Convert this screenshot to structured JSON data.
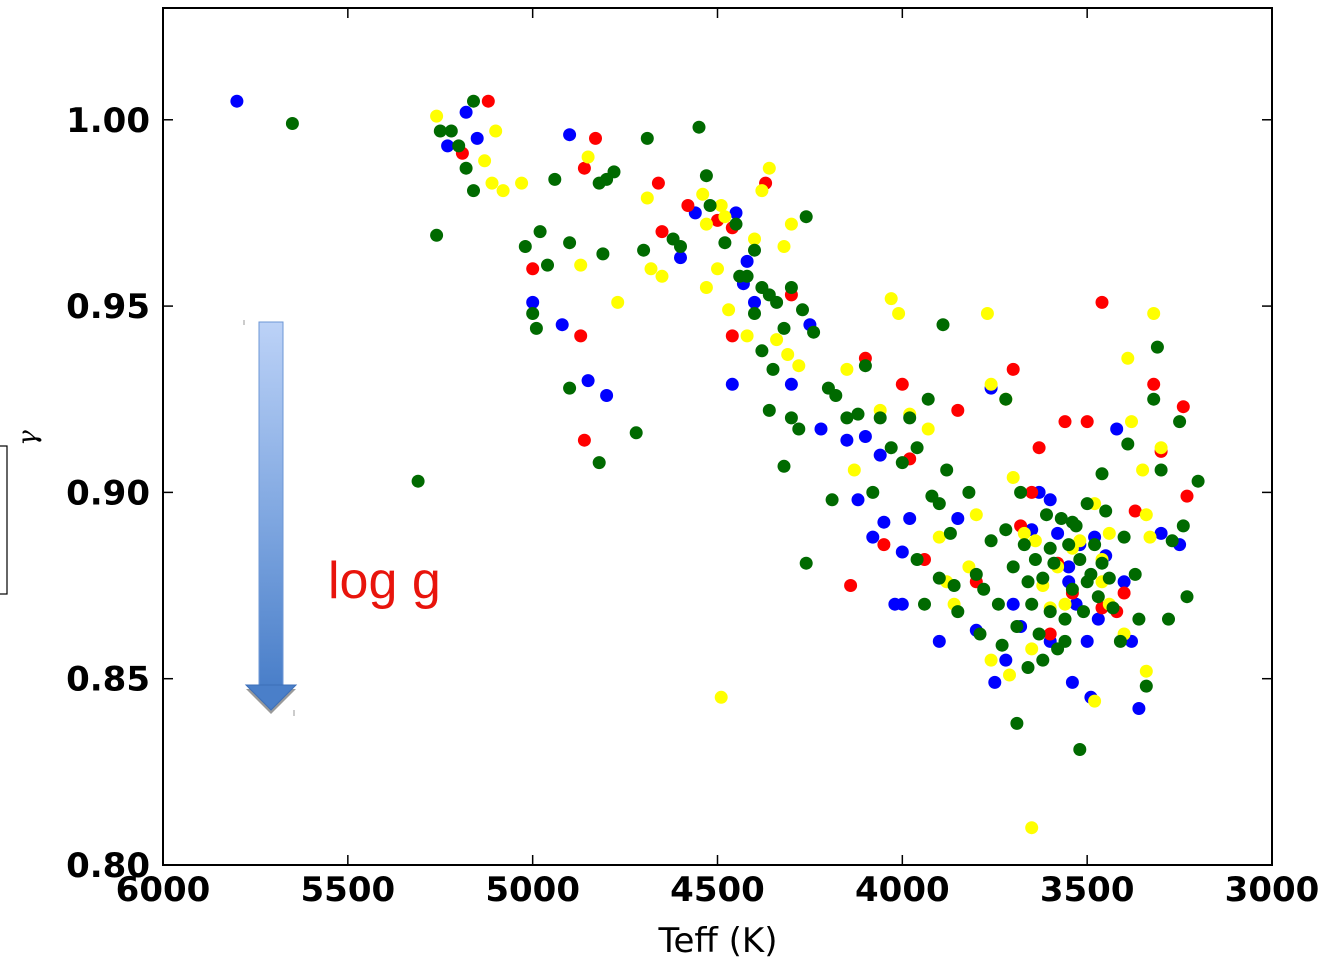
{
  "chart_data": {
    "type": "scatter",
    "title": "",
    "xlabel": "Teff (K)",
    "ylabel": "γ",
    "xlim": [
      6000,
      3000
    ],
    "ylim": [
      0.8,
      1.03
    ],
    "x_inverted": true,
    "xticks": [
      "6000",
      "5500",
      "5000",
      "4500",
      "4000",
      "3500",
      "3000"
    ],
    "yticks": [
      "0.80",
      "0.85",
      "0.90",
      "0.95",
      "1.00"
    ],
    "grid": false,
    "annotation": {
      "text": "log g",
      "color": "#e8140c",
      "arrow_direction": "down"
    },
    "series": [
      {
        "color": "#0000ff",
        "points": [
          [
            5800,
            1.005
          ],
          [
            5180,
            1.002
          ],
          [
            5150,
            0.995
          ],
          [
            5230,
            0.993
          ],
          [
            4900,
            0.996
          ],
          [
            4800,
            0.926
          ],
          [
            4850,
            0.93
          ],
          [
            4920,
            0.945
          ],
          [
            5000,
            0.951
          ],
          [
            4600,
            0.963
          ],
          [
            4560,
            0.975
          ],
          [
            4450,
            0.975
          ],
          [
            4430,
            0.956
          ],
          [
            4420,
            0.962
          ],
          [
            4400,
            0.951
          ],
          [
            4460,
            0.929
          ],
          [
            4300,
            0.929
          ],
          [
            4250,
            0.945
          ],
          [
            4220,
            0.917
          ],
          [
            4150,
            0.914
          ],
          [
            4100,
            0.915
          ],
          [
            4060,
            0.91
          ],
          [
            4120,
            0.898
          ],
          [
            4080,
            0.888
          ],
          [
            4050,
            0.892
          ],
          [
            4020,
            0.87
          ],
          [
            4000,
            0.87
          ],
          [
            4000,
            0.884
          ],
          [
            3980,
            0.893
          ],
          [
            3900,
            0.86
          ],
          [
            3850,
            0.893
          ],
          [
            3800,
            0.863
          ],
          [
            3760,
            0.928
          ],
          [
            3750,
            0.849
          ],
          [
            3720,
            0.855
          ],
          [
            3680,
            0.864
          ],
          [
            3650,
            0.89
          ],
          [
            3630,
            0.9
          ],
          [
            3600,
            0.86
          ],
          [
            3580,
            0.889
          ],
          [
            3550,
            0.88
          ],
          [
            3540,
            0.849
          ],
          [
            3530,
            0.87
          ],
          [
            3500,
            0.86
          ],
          [
            3490,
            0.845
          ],
          [
            3480,
            0.888
          ],
          [
            3450,
            0.883
          ],
          [
            3420,
            0.917
          ],
          [
            3400,
            0.876
          ],
          [
            3380,
            0.86
          ],
          [
            3360,
            0.842
          ],
          [
            3300,
            0.889
          ],
          [
            3250,
            0.886
          ],
          [
            3600,
            0.898
          ],
          [
            3550,
            0.876
          ],
          [
            3700,
            0.87
          ],
          [
            3520,
            0.886
          ],
          [
            3470,
            0.866
          ]
        ]
      },
      {
        "color": "#ff0000",
        "points": [
          [
            5120,
            1.005
          ],
          [
            5190,
            0.991
          ],
          [
            4830,
            0.995
          ],
          [
            4860,
            0.987
          ],
          [
            4660,
            0.983
          ],
          [
            4580,
            0.977
          ],
          [
            4500,
            0.973
          ],
          [
            4460,
            0.971
          ],
          [
            4370,
            0.983
          ],
          [
            4650,
            0.97
          ],
          [
            5000,
            0.96
          ],
          [
            4870,
            0.942
          ],
          [
            4860,
            0.914
          ],
          [
            4300,
            0.953
          ],
          [
            4460,
            0.942
          ],
          [
            4100,
            0.936
          ],
          [
            4000,
            0.929
          ],
          [
            4050,
            0.886
          ],
          [
            3980,
            0.909
          ],
          [
            3940,
            0.882
          ],
          [
            3850,
            0.922
          ],
          [
            3800,
            0.876
          ],
          [
            3700,
            0.933
          ],
          [
            3650,
            0.9
          ],
          [
            3630,
            0.912
          ],
          [
            3580,
            0.881
          ],
          [
            3560,
            0.919
          ],
          [
            3500,
            0.919
          ],
          [
            3460,
            0.951
          ],
          [
            3420,
            0.868
          ],
          [
            3320,
            0.929
          ],
          [
            3300,
            0.911
          ],
          [
            3240,
            0.923
          ],
          [
            3230,
            0.899
          ],
          [
            3600,
            0.862
          ],
          [
            3460,
            0.869
          ],
          [
            3400,
            0.873
          ],
          [
            3680,
            0.891
          ],
          [
            3540,
            0.873
          ],
          [
            4140,
            0.875
          ],
          [
            3370,
            0.895
          ]
        ]
      },
      {
        "color": "#ffff00",
        "points": [
          [
            5260,
            1.001
          ],
          [
            5100,
            0.997
          ],
          [
            5130,
            0.989
          ],
          [
            5110,
            0.983
          ],
          [
            5080,
            0.981
          ],
          [
            5030,
            0.983
          ],
          [
            4850,
            0.99
          ],
          [
            4870,
            0.961
          ],
          [
            4770,
            0.951
          ],
          [
            4690,
            0.979
          ],
          [
            4680,
            0.96
          ],
          [
            4650,
            0.958
          ],
          [
            4540,
            0.98
          ],
          [
            4530,
            0.972
          ],
          [
            4490,
            0.977
          ],
          [
            4480,
            0.974
          ],
          [
            4400,
            0.968
          ],
          [
            4380,
            0.981
          ],
          [
            4360,
            0.987
          ],
          [
            4320,
            0.966
          ],
          [
            4300,
            0.972
          ],
          [
            4500,
            0.96
          ],
          [
            4530,
            0.955
          ],
          [
            4470,
            0.949
          ],
          [
            4420,
            0.942
          ],
          [
            4340,
            0.941
          ],
          [
            4310,
            0.937
          ],
          [
            4280,
            0.934
          ],
          [
            4150,
            0.933
          ],
          [
            4130,
            0.906
          ],
          [
            4060,
            0.922
          ],
          [
            4030,
            0.952
          ],
          [
            4010,
            0.948
          ],
          [
            3980,
            0.921
          ],
          [
            3930,
            0.917
          ],
          [
            3900,
            0.888
          ],
          [
            3880,
            0.876
          ],
          [
            3860,
            0.87
          ],
          [
            3770,
            0.948
          ],
          [
            3760,
            0.929
          ],
          [
            3720,
            0.925
          ],
          [
            3700,
            0.904
          ],
          [
            3670,
            0.889
          ],
          [
            3640,
            0.887
          ],
          [
            3620,
            0.875
          ],
          [
            3600,
            0.869
          ],
          [
            3580,
            0.88
          ],
          [
            3560,
            0.87
          ],
          [
            3520,
            0.887
          ],
          [
            3480,
            0.897
          ],
          [
            3460,
            0.882
          ],
          [
            3440,
            0.889
          ],
          [
            3400,
            0.862
          ],
          [
            3390,
            0.936
          ],
          [
            3380,
            0.919
          ],
          [
            3350,
            0.906
          ],
          [
            3340,
            0.894
          ],
          [
            3330,
            0.888
          ],
          [
            3320,
            0.948
          ],
          [
            3300,
            0.912
          ],
          [
            4490,
            0.845
          ],
          [
            3650,
            0.81
          ],
          [
            3650,
            0.858
          ],
          [
            3540,
            0.885
          ],
          [
            3480,
            0.844
          ],
          [
            3340,
            0.852
          ],
          [
            3460,
            0.876
          ],
          [
            3760,
            0.855
          ],
          [
            3710,
            0.851
          ],
          [
            3800,
            0.894
          ],
          [
            3820,
            0.88
          ],
          [
            3440,
            0.87
          ]
        ]
      },
      {
        "color": "#006a00",
        "points": [
          [
            5650,
            0.999
          ],
          [
            5250,
            0.997
          ],
          [
            5220,
            0.997
          ],
          [
            5200,
            0.993
          ],
          [
            5160,
            1.005
          ],
          [
            5180,
            0.987
          ],
          [
            5160,
            0.981
          ],
          [
            5260,
            0.969
          ],
          [
            5020,
            0.966
          ],
          [
            4980,
            0.97
          ],
          [
            4960,
            0.961
          ],
          [
            4940,
            0.984
          ],
          [
            4900,
            0.967
          ],
          [
            4780,
            0.986
          ],
          [
            4800,
            0.984
          ],
          [
            4820,
            0.983
          ],
          [
            4690,
            0.995
          ],
          [
            4550,
            0.998
          ],
          [
            4530,
            0.985
          ],
          [
            4520,
            0.977
          ],
          [
            4450,
            0.972
          ],
          [
            4480,
            0.967
          ],
          [
            4400,
            0.965
          ],
          [
            4420,
            0.958
          ],
          [
            4380,
            0.955
          ],
          [
            4360,
            0.953
          ],
          [
            4340,
            0.951
          ],
          [
            4300,
            0.955
          ],
          [
            4270,
            0.949
          ],
          [
            4260,
            0.974
          ],
          [
            4240,
            0.943
          ],
          [
            4320,
            0.944
          ],
          [
            4620,
            0.968
          ],
          [
            4600,
            0.966
          ],
          [
            4700,
            0.965
          ],
          [
            4810,
            0.964
          ],
          [
            5000,
            0.948
          ],
          [
            4990,
            0.944
          ],
          [
            4900,
            0.928
          ],
          [
            4820,
            0.908
          ],
          [
            4720,
            0.916
          ],
          [
            4440,
            0.958
          ],
          [
            4400,
            0.948
          ],
          [
            4380,
            0.938
          ],
          [
            4350,
            0.933
          ],
          [
            4300,
            0.92
          ],
          [
            4280,
            0.917
          ],
          [
            4200,
            0.928
          ],
          [
            4180,
            0.926
          ],
          [
            4150,
            0.92
          ],
          [
            4120,
            0.921
          ],
          [
            4100,
            0.934
          ],
          [
            4080,
            0.9
          ],
          [
            4060,
            0.92
          ],
          [
            4030,
            0.912
          ],
          [
            4000,
            0.908
          ],
          [
            3980,
            0.92
          ],
          [
            3960,
            0.912
          ],
          [
            3930,
            0.925
          ],
          [
            3920,
            0.899
          ],
          [
            3900,
            0.897
          ],
          [
            3890,
            0.945
          ],
          [
            3880,
            0.906
          ],
          [
            3870,
            0.889
          ],
          [
            3860,
            0.875
          ],
          [
            3850,
            0.868
          ],
          [
            3820,
            0.9
          ],
          [
            3800,
            0.878
          ],
          [
            3780,
            0.874
          ],
          [
            3760,
            0.887
          ],
          [
            3740,
            0.87
          ],
          [
            3730,
            0.859
          ],
          [
            3720,
            0.925
          ],
          [
            3700,
            0.88
          ],
          [
            3690,
            0.864
          ],
          [
            3680,
            0.9
          ],
          [
            3670,
            0.886
          ],
          [
            3660,
            0.876
          ],
          [
            3650,
            0.87
          ],
          [
            3640,
            0.882
          ],
          [
            3630,
            0.862
          ],
          [
            3620,
            0.877
          ],
          [
            3610,
            0.894
          ],
          [
            3600,
            0.868
          ],
          [
            3590,
            0.881
          ],
          [
            3580,
            0.858
          ],
          [
            3570,
            0.893
          ],
          [
            3560,
            0.866
          ],
          [
            3550,
            0.886
          ],
          [
            3540,
            0.874
          ],
          [
            3530,
            0.891
          ],
          [
            3520,
            0.882
          ],
          [
            3510,
            0.868
          ],
          [
            3500,
            0.897
          ],
          [
            3490,
            0.878
          ],
          [
            3480,
            0.886
          ],
          [
            3470,
            0.872
          ],
          [
            3460,
            0.881
          ],
          [
            3450,
            0.895
          ],
          [
            3440,
            0.877
          ],
          [
            3430,
            0.869
          ],
          [
            3410,
            0.86
          ],
          [
            3400,
            0.888
          ],
          [
            3390,
            0.913
          ],
          [
            3370,
            0.878
          ],
          [
            3360,
            0.866
          ],
          [
            3340,
            0.848
          ],
          [
            3320,
            0.925
          ],
          [
            3310,
            0.939
          ],
          [
            3300,
            0.906
          ],
          [
            3280,
            0.866
          ],
          [
            3270,
            0.887
          ],
          [
            3250,
            0.919
          ],
          [
            3240,
            0.891
          ],
          [
            3230,
            0.872
          ],
          [
            3200,
            0.903
          ],
          [
            5310,
            0.903
          ],
          [
            4360,
            0.922
          ],
          [
            4320,
            0.907
          ],
          [
            4260,
            0.881
          ],
          [
            3690,
            0.838
          ],
          [
            3520,
            0.831
          ],
          [
            3660,
            0.853
          ],
          [
            3620,
            0.855
          ],
          [
            3900,
            0.877
          ],
          [
            3960,
            0.882
          ],
          [
            4190,
            0.898
          ],
          [
            3940,
            0.87
          ],
          [
            3790,
            0.862
          ],
          [
            3460,
            0.905
          ],
          [
            3720,
            0.89
          ],
          [
            3600,
            0.885
          ],
          [
            3560,
            0.86
          ],
          [
            3500,
            0.876
          ],
          [
            3540,
            0.892
          ]
        ]
      }
    ]
  }
}
